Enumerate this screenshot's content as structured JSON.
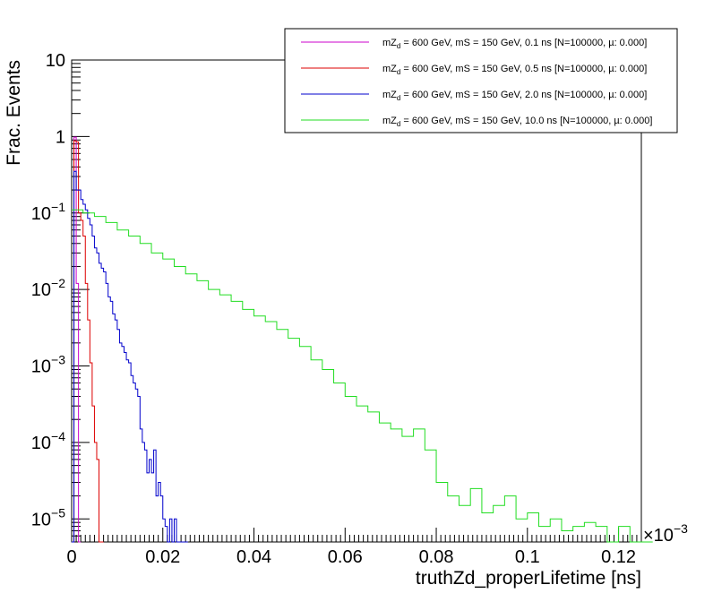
{
  "chart_data": {
    "type": "line",
    "step": true,
    "xlabel": "truthZd_properLifetime [ns]",
    "ylabel": "Frac. Events",
    "x_multiplier_label": "×10",
    "x_multiplier_exp": "−3",
    "xlim": [
      0,
      0.125
    ],
    "ylim": [
      5e-06,
      10
    ],
    "log_y": true,
    "grid": false,
    "legend_position": "top-right",
    "x_ticks": [
      {
        "v": 0,
        "label": "0"
      },
      {
        "v": 0.02,
        "label": "0.02"
      },
      {
        "v": 0.04,
        "label": "0.04"
      },
      {
        "v": 0.06,
        "label": "0.06"
      },
      {
        "v": 0.08,
        "label": "0.08"
      },
      {
        "v": 0.1,
        "label": "0.1"
      },
      {
        "v": 0.12,
        "label": "0.12"
      }
    ],
    "y_ticks": [
      {
        "v": 1e-05,
        "base": "10",
        "exp": "−5"
      },
      {
        "v": 0.0001,
        "base": "10",
        "exp": "−4"
      },
      {
        "v": 0.001,
        "base": "10",
        "exp": "−3"
      },
      {
        "v": 0.01,
        "base": "10",
        "exp": "−2"
      },
      {
        "v": 0.1,
        "base": "10",
        "exp": "−1"
      },
      {
        "v": 1,
        "base": "1",
        "exp": ""
      },
      {
        "v": 10,
        "base": "10",
        "exp": ""
      }
    ],
    "series": [
      {
        "name": "mZd = 600 GeV, mS = 150 GeV, 0.1 ns [N=100000, µ: 0.000]",
        "legend": {
          "pre": "mZ",
          "sub": "d",
          "post": " = 600 GeV, mS = 150 GeV, 0.1 ns [N=100000, µ: 0.000]"
        },
        "color": "#cc00cc",
        "x": [
          0.0,
          0.0005,
          0.001,
          0.0015
        ],
        "y": [
          0.0,
          0.98,
          0.012,
          0.0
        ]
      },
      {
        "name": "mZd = 600 GeV, mS = 150 GeV, 0.5 ns [N=100000, µ: 0.000]",
        "legend": {
          "pre": "mZ",
          "sub": "d",
          "post": " = 600 GeV, mS = 150 GeV, 0.5 ns [N=100000, µ: 0.000]"
        },
        "color": "#dd0000",
        "x": [
          0.0,
          0.0005,
          0.001,
          0.0015,
          0.002,
          0.0025,
          0.003,
          0.0035,
          0.004,
          0.0045,
          0.005,
          0.0055,
          0.006,
          0.0065
        ],
        "y": [
          0.0,
          0.88,
          0.85,
          0.1,
          0.08,
          0.05,
          0.012,
          0.004,
          0.0011,
          0.0003,
          0.0001,
          6e-05,
          0.0,
          0.0
        ]
      },
      {
        "name": "mZd = 600 GeV, mS = 150 GeV, 2.0 ns [N=100000, µ: 0.000]",
        "legend": {
          "pre": "mZ",
          "sub": "d",
          "post": " = 600 GeV, mS = 150 GeV, 2.0 ns [N=100000, µ: 0.000]"
        },
        "color": "#0000cc",
        "x": [
          0.0,
          0.0005,
          0.001,
          0.0015,
          0.002,
          0.0025,
          0.003,
          0.0035,
          0.004,
          0.0045,
          0.005,
          0.0055,
          0.006,
          0.0065,
          0.007,
          0.0075,
          0.008,
          0.0085,
          0.009,
          0.0095,
          0.01,
          0.0105,
          0.011,
          0.0115,
          0.012,
          0.0125,
          0.013,
          0.0135,
          0.014,
          0.0145,
          0.015,
          0.0155,
          0.016,
          0.0165,
          0.017,
          0.0175,
          0.018,
          0.0185,
          0.019,
          0.0195,
          0.02,
          0.0205,
          0.021,
          0.0215,
          0.022,
          0.0225,
          0.023,
          0.0235,
          0.024,
          0.0245,
          0.025
        ],
        "y": [
          0.0,
          0.35,
          0.2,
          0.2,
          0.15,
          0.13,
          0.11,
          0.085,
          0.07,
          0.05,
          0.035,
          0.03,
          0.022,
          0.019,
          0.017,
          0.012,
          0.008,
          0.007,
          0.0048,
          0.004,
          0.003,
          0.002,
          0.0018,
          0.0015,
          0.0012,
          0.0011,
          0.00075,
          0.0006,
          0.0005,
          0.0004,
          0.00015,
          0.0001,
          8e-05,
          4e-05,
          6e-05,
          4e-05,
          8e-05,
          2e-05,
          3e-05,
          2e-05,
          1e-05,
          8e-06,
          5e-06,
          1e-05,
          5e-06,
          1e-05,
          0.0,
          0.0,
          0.0,
          0.0,
          0.0
        ]
      },
      {
        "name": "mZd = 600 GeV, mS = 150 GeV, 10.0 ns [N=100000, µ: 0.000]",
        "legend": {
          "pre": "mZ",
          "sub": "d",
          "post": " = 600 GeV, mS = 150 GeV, 10.0 ns [N=100000, µ: 0.000]"
        },
        "color": "#22dd22",
        "x": [
          0.0,
          0.0025,
          0.005,
          0.0075,
          0.01,
          0.0125,
          0.015,
          0.0175,
          0.02,
          0.0225,
          0.025,
          0.0275,
          0.03,
          0.0325,
          0.035,
          0.0375,
          0.04,
          0.0425,
          0.045,
          0.0475,
          0.05,
          0.0525,
          0.055,
          0.0575,
          0.06,
          0.0625,
          0.065,
          0.0675,
          0.07,
          0.0725,
          0.075,
          0.0775,
          0.08,
          0.0825,
          0.085,
          0.0875,
          0.09,
          0.0925,
          0.095,
          0.0975,
          0.1,
          0.1025,
          0.105,
          0.1075,
          0.11,
          0.1125,
          0.115,
          0.1175,
          0.12,
          0.1225,
          0.125
        ],
        "y": [
          0.11,
          0.1,
          0.09,
          0.075,
          0.06,
          0.05,
          0.04,
          0.03,
          0.025,
          0.02,
          0.016,
          0.013,
          0.01,
          0.0085,
          0.007,
          0.0055,
          0.0045,
          0.0038,
          0.003,
          0.0023,
          0.0018,
          0.0012,
          0.0009,
          0.0006,
          0.0004,
          0.0003,
          0.00025,
          0.00018,
          0.00015,
          0.00012,
          0.00015,
          8e-05,
          3e-05,
          2e-05,
          1.5e-05,
          2.5e-05,
          1.2e-05,
          1.5e-05,
          2e-05,
          1e-05,
          1.2e-05,
          8e-06,
          1e-05,
          7e-06,
          8e-06,
          9e-06,
          8e-06,
          5e-06,
          8e-06,
          5e-06,
          5e-06
        ]
      }
    ]
  }
}
